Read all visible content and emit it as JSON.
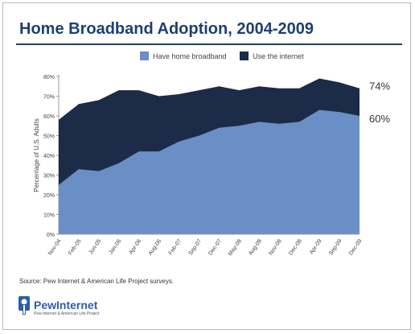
{
  "title": "Home Broadband Adoption, 2004-2009",
  "source": "Source: Pew Internet & American Life Project surveys.",
  "logo": {
    "name": "PewInternet",
    "tagline": "Pew Internet & American Life Project"
  },
  "colors": {
    "broadband": "#6a8fc6",
    "internet": "#1c2b47",
    "title": "#1f3f72"
  },
  "chart_data": {
    "type": "area",
    "title": "Home Broadband Adoption, 2004-2009",
    "xlabel": "",
    "ylabel": "Percentage of U.S. Adults",
    "ylim": [
      0,
      80
    ],
    "y_ticks": [
      "0%",
      "10%",
      "20%",
      "30%",
      "40%",
      "50%",
      "60%",
      "70%",
      "80%"
    ],
    "legend_position": "top-center",
    "grid": false,
    "x_labels": [
      "Nov-04",
      "Feb-05",
      "Jun-05",
      "Jan-06",
      "Apr-06",
      "Aug-06",
      "Feb-07",
      "Sep-07",
      "Dec-07",
      "May-08",
      "Aug-08",
      "Nov-08",
      "Dec-08",
      "Apr-09",
      "Sep-09",
      "Dec-09"
    ],
    "series": [
      {
        "name": "Have home broadband",
        "color": "#6a8fc6",
        "values": [
          25,
          33,
          32,
          36,
          42,
          42,
          47,
          50,
          54,
          55,
          57,
          56,
          57,
          63,
          62,
          60
        ]
      },
      {
        "name": "Use the internet",
        "color": "#1c2b47",
        "values": [
          58,
          66,
          68,
          73,
          73,
          70,
          71,
          73,
          75,
          73,
          75,
          74,
          74,
          79,
          77,
          74
        ]
      }
    ],
    "end_labels": [
      "74%",
      "60%"
    ]
  }
}
